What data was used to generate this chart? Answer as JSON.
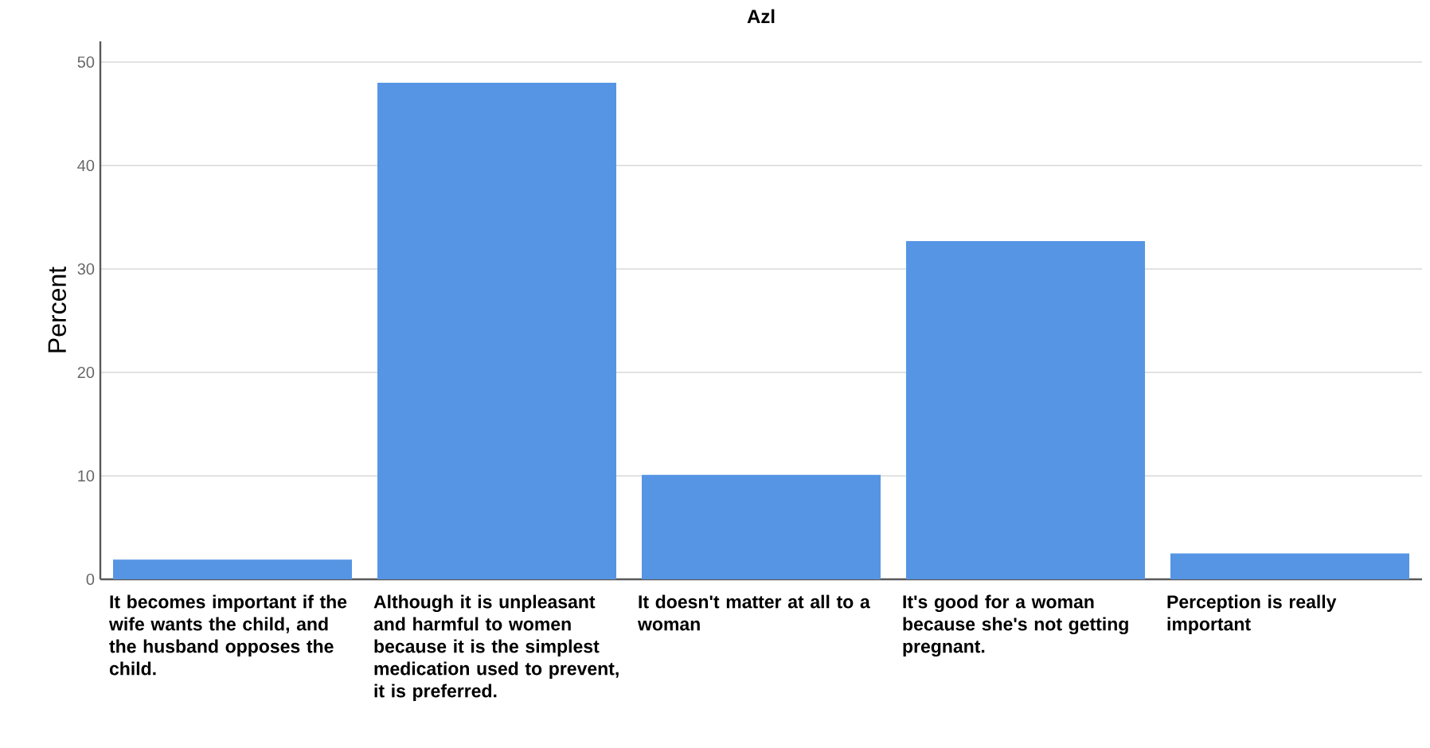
{
  "chart_data": {
    "type": "bar",
    "title": "Azl",
    "ylabel": "Percent",
    "categories": [
      "It becomes important if the wife wants the child, and the husband opposes the child.",
      "Although it is unpleasant and harmful to women because it is the simplest medication used to prevent, it is preferred.",
      "It doesn't matter at all to a woman",
      "It's good for a woman because she's not getting pregnant.",
      "Perception is really important"
    ],
    "values": [
      1.9,
      48.0,
      10.1,
      32.7,
      2.5
    ],
    "color": "#5595e3",
    "ylim": [
      0,
      52
    ],
    "yticks": [
      0,
      10,
      20,
      30,
      40,
      50
    ],
    "grid": "y"
  }
}
